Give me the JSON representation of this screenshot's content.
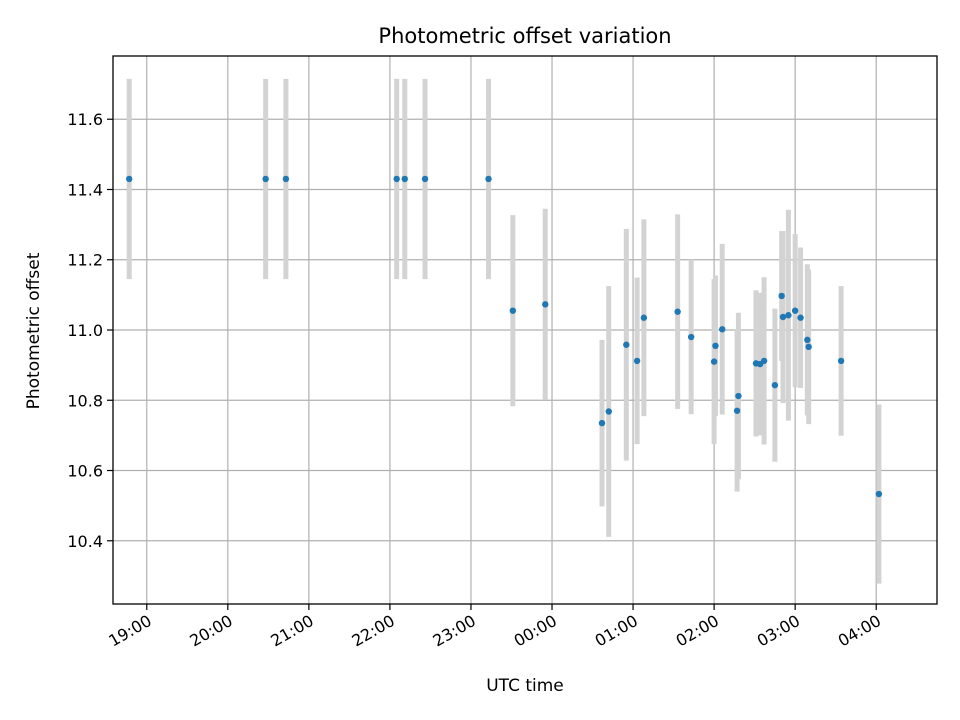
{
  "chart_data": {
    "type": "scatter",
    "title": "Photometric offset variation",
    "xlabel": "UTC time",
    "ylabel": "Photometric offset",
    "x_ticks": [
      "19:00",
      "20:00",
      "21:00",
      "22:00",
      "23:00",
      "00:00",
      "01:00",
      "02:00",
      "03:00",
      "04:00"
    ],
    "y_ticks": [
      "10.4",
      "10.6",
      "10.8",
      "11.0",
      "11.2",
      "11.4",
      "11.6"
    ],
    "xlim": [
      "18:35",
      "04:45"
    ],
    "ylim": [
      10.22,
      11.78
    ],
    "grid": true,
    "colors": {
      "points": "#1f77b4",
      "errorbars": "#d3d3d3",
      "grid": "#b0b0b0"
    },
    "points": [
      {
        "t": "18:47",
        "y": 11.43,
        "err": 0.285
      },
      {
        "t": "20:28",
        "y": 11.43,
        "err": 0.285
      },
      {
        "t": "20:43",
        "y": 11.43,
        "err": 0.285
      },
      {
        "t": "22:05",
        "y": 11.43,
        "err": 0.285
      },
      {
        "t": "22:11",
        "y": 11.43,
        "err": 0.285
      },
      {
        "t": "22:26",
        "y": 11.43,
        "err": 0.285
      },
      {
        "t": "23:13",
        "y": 11.43,
        "err": 0.285
      },
      {
        "t": "23:31",
        "y": 11.055,
        "err": 0.272
      },
      {
        "t": "23:55",
        "y": 11.073,
        "err": 0.272
      },
      {
        "t": "00:37",
        "y": 10.735,
        "err": 0.237
      },
      {
        "t": "00:42",
        "y": 10.768,
        "err": 0.357
      },
      {
        "t": "00:55",
        "y": 10.958,
        "err": 0.33
      },
      {
        "t": "01:03",
        "y": 10.912,
        "err": 0.237
      },
      {
        "t": "01:08",
        "y": 11.035,
        "err": 0.28
      },
      {
        "t": "01:33",
        "y": 11.052,
        "err": 0.277
      },
      {
        "t": "01:43",
        "y": 10.98,
        "err": 0.22
      },
      {
        "t": "02:00",
        "y": 10.91,
        "err": 0.235
      },
      {
        "t": "02:01",
        "y": 10.955,
        "err": 0.2
      },
      {
        "t": "02:06",
        "y": 11.002,
        "err": 0.243
      },
      {
        "t": "02:17",
        "y": 10.77,
        "err": 0.23
      },
      {
        "t": "02:18",
        "y": 10.812,
        "err": 0.237
      },
      {
        "t": "02:31",
        "y": 10.905,
        "err": 0.208
      },
      {
        "t": "02:34",
        "y": 10.903,
        "err": 0.203
      },
      {
        "t": "02:37",
        "y": 10.912,
        "err": 0.238
      },
      {
        "t": "02:45",
        "y": 10.843,
        "err": 0.218
      },
      {
        "t": "02:50",
        "y": 11.097,
        "err": 0.185
      },
      {
        "t": "02:51",
        "y": 11.037,
        "err": 0.245
      },
      {
        "t": "02:55",
        "y": 11.042,
        "err": 0.3
      },
      {
        "t": "03:00",
        "y": 11.055,
        "err": 0.218
      },
      {
        "t": "03:04",
        "y": 11.035,
        "err": 0.2
      },
      {
        "t": "03:09",
        "y": 10.972,
        "err": 0.215
      },
      {
        "t": "03:10",
        "y": 10.952,
        "err": 0.22
      },
      {
        "t": "03:34",
        "y": 10.912,
        "err": 0.213
      },
      {
        "t": "04:02",
        "y": 10.533,
        "err": 0.255
      }
    ]
  }
}
